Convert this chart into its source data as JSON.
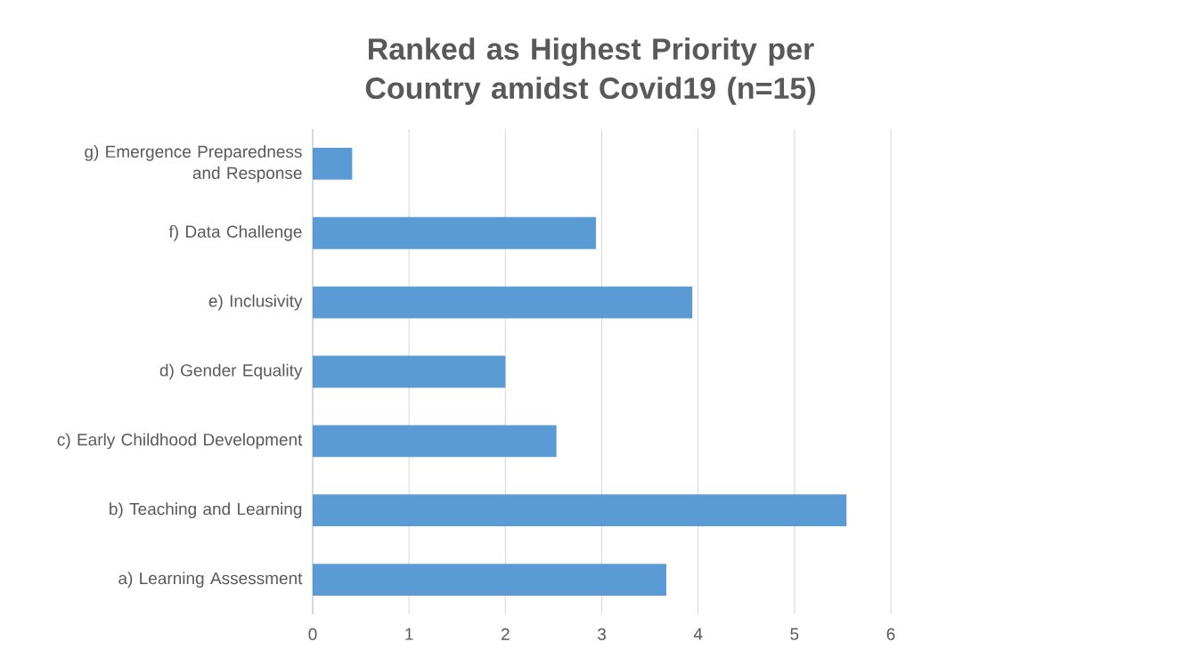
{
  "chart_data": {
    "type": "bar",
    "orientation": "horizontal",
    "title": "Ranked as Highest Priority per Country amidst Covid19 (n=15)",
    "categories": [
      "g) Emergence Preparedness and Response",
      "f) Data Challenge",
      "e) Inclusivity",
      "d) Gender Equality",
      "c) Early Childhood Development",
      "b) Teaching and Learning",
      "a) Learning Assessment"
    ],
    "values": [
      0.41,
      2.94,
      3.94,
      2.0,
      2.53,
      5.54,
      3.67
    ],
    "color": "#5b9bd5",
    "xlim": [
      0,
      6
    ],
    "xticks": [
      0,
      1,
      2,
      3,
      4,
      5,
      6
    ],
    "grid": "x"
  }
}
